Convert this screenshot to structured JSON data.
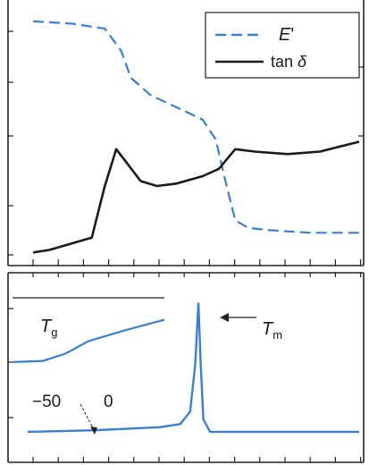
{
  "chart_data": [
    {
      "type": "line",
      "title": "",
      "xlabel": "",
      "ylabel": "",
      "legend": {
        "placement": "top-right",
        "entries": [
          {
            "symbol": "E",
            "suffix": "'",
            "style": "dashed",
            "color": "#3a7fd5"
          },
          {
            "symbol": "tan",
            "suffix": " δ",
            "style": "solid",
            "color": "#1a1a1a"
          }
        ]
      },
      "series": [
        {
          "name": "E'",
          "color": "#3a7fd5",
          "style": "dashed",
          "points": [
            [
              0,
              0.95
            ],
            [
              0.12,
              0.94
            ],
            [
              0.22,
              0.92
            ],
            [
              0.27,
              0.83
            ],
            [
              0.3,
              0.72
            ],
            [
              0.36,
              0.65
            ],
            [
              0.44,
              0.6
            ],
            [
              0.52,
              0.55
            ],
            [
              0.56,
              0.47
            ],
            [
              0.59,
              0.3
            ],
            [
              0.62,
              0.14
            ],
            [
              0.66,
              0.11
            ],
            [
              0.73,
              0.1
            ],
            [
              0.85,
              0.09
            ],
            [
              1.0,
              0.09
            ]
          ]
        },
        {
          "name": "tan δ",
          "color": "#1a1a1a",
          "style": "solid",
          "points": [
            [
              0,
              0.01
            ],
            [
              0.05,
              0.02
            ],
            [
              0.18,
              0.07
            ],
            [
              0.22,
              0.28
            ],
            [
              0.255,
              0.43
            ],
            [
              0.29,
              0.37
            ],
            [
              0.33,
              0.3
            ],
            [
              0.38,
              0.28
            ],
            [
              0.44,
              0.29
            ],
            [
              0.52,
              0.32
            ],
            [
              0.57,
              0.35
            ],
            [
              0.62,
              0.43
            ],
            [
              0.68,
              0.42
            ],
            [
              0.78,
              0.41
            ],
            [
              0.88,
              0.42
            ],
            [
              1.0,
              0.46
            ]
          ]
        }
      ]
    },
    {
      "type": "line",
      "title": "",
      "xlabel": "",
      "ylabel": "",
      "series": [
        {
          "name": "",
          "color": "#3a7fd5",
          "style": "solid",
          "points": [
            [
              0,
              0.07
            ],
            [
              0.2,
              0.08
            ],
            [
              0.4,
              0.1
            ],
            [
              0.46,
              0.12
            ],
            [
              0.49,
              0.2
            ],
            [
              0.505,
              0.5
            ],
            [
              0.515,
              0.9
            ],
            [
              0.522,
              0.5
            ],
            [
              0.53,
              0.15
            ],
            [
              0.55,
              0.07
            ],
            [
              1.0,
              0.07
            ]
          ]
        }
      ],
      "annotations": [
        {
          "symbol": "T",
          "sub": "m",
          "arrow": true
        },
        {
          "text": "−50"
        },
        {
          "text": "0"
        }
      ],
      "inset": {
        "label_symbol": "T",
        "label_sub": "g",
        "points": [
          [
            0,
            0.05
          ],
          [
            0.2,
            0.07
          ],
          [
            0.35,
            0.2
          ],
          [
            0.5,
            0.42
          ],
          [
            0.75,
            0.62
          ],
          [
            1.0,
            0.8
          ]
        ]
      }
    }
  ]
}
